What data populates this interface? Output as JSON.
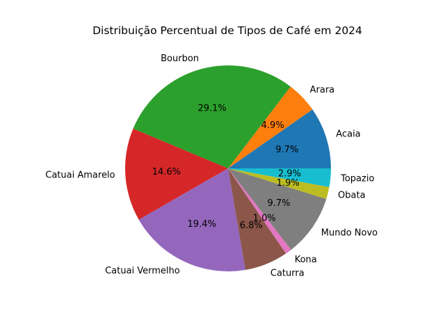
{
  "chart_data": {
    "type": "pie",
    "title": "Distribuição Percentual de Tipos de Café em 2024",
    "slices": [
      {
        "label": "Acaia",
        "value": 9.7,
        "pct_label": "9.7%",
        "color": "#1f77b4"
      },
      {
        "label": "Arara",
        "value": 4.9,
        "pct_label": "4.9%",
        "color": "#ff7f0e"
      },
      {
        "label": "Bourbon",
        "value": 29.1,
        "pct_label": "29.1%",
        "color": "#2ca02c"
      },
      {
        "label": "Catuai Amarelo",
        "value": 14.6,
        "pct_label": "14.6%",
        "color": "#d62728"
      },
      {
        "label": "Catuai Vermelho",
        "value": 19.4,
        "pct_label": "19.4%",
        "color": "#9467bd"
      },
      {
        "label": "Caturra",
        "value": 6.8,
        "pct_label": "6.8%",
        "color": "#8c564b"
      },
      {
        "label": "Kona",
        "value": 1.0,
        "pct_label": "1.0%",
        "color": "#e377c2"
      },
      {
        "label": "Mundo Novo",
        "value": 9.7,
        "pct_label": "9.7%",
        "color": "#7f7f7f"
      },
      {
        "label": "Obata",
        "value": 1.9,
        "pct_label": "1.9%",
        "color": "#bcbd22"
      },
      {
        "label": "Topazio",
        "value": 2.9,
        "pct_label": "2.9%",
        "color": "#17becf"
      }
    ],
    "start_angle_deg": 0,
    "direction": "counterclockwise",
    "legend": "none"
  }
}
